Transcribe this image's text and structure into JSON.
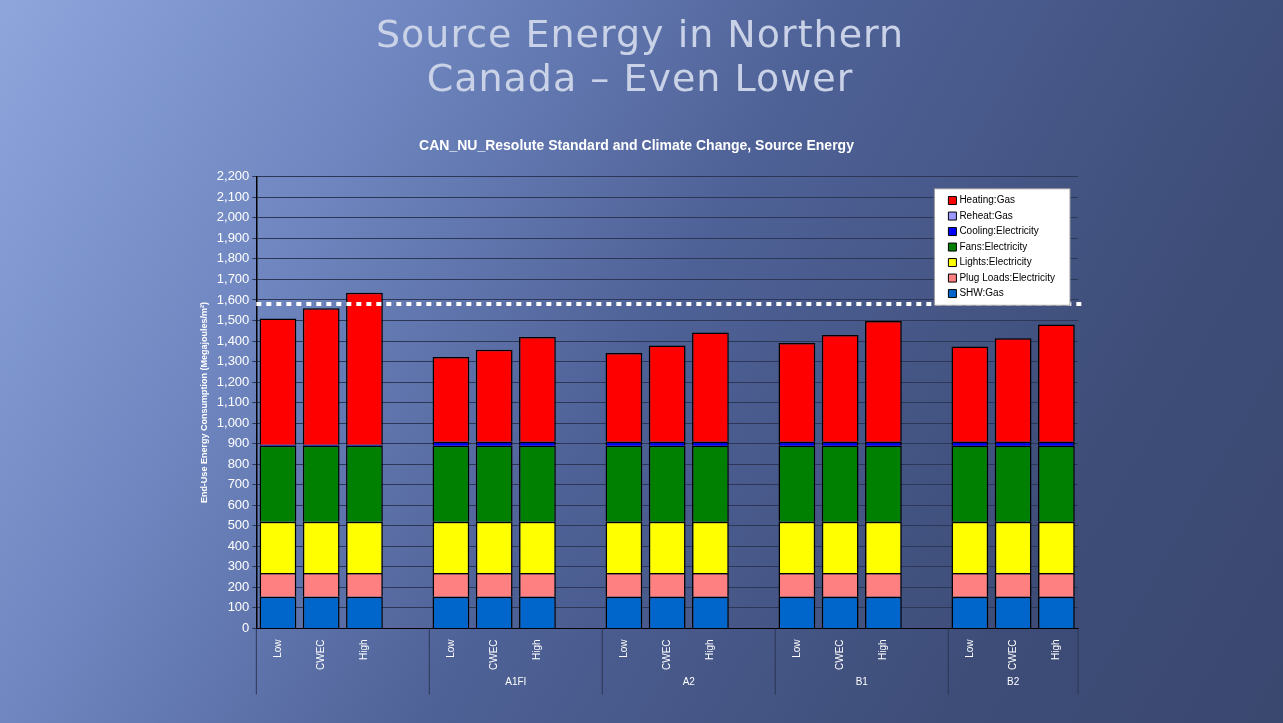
{
  "chart_data": {
    "type": "bar",
    "title": "Source Energy in Northern Canada – Even Lower",
    "subtitle": "CAN_NU_Resolute Standard and Climate Change, Source Energy",
    "ylabel": "End-Use Energy Consumption (Megajoules/m²)",
    "categories": [
      "Low",
      "CWEC",
      "High",
      null,
      "Low",
      "CWEC",
      "High",
      null,
      "Low",
      "CWEC",
      "High",
      null,
      "Low",
      "CWEC",
      "High",
      null,
      "Low",
      "CWEC",
      "High"
    ],
    "annotations": [
      "A1FI",
      "A2",
      "B1",
      "B2"
    ],
    "stacked": true,
    "ylim": [
      0,
      2200
    ],
    "yticks": [
      {
        "value": 0,
        "label": "0"
      },
      {
        "value": 100,
        "label": "100"
      },
      {
        "value": 200,
        "label": "200"
      },
      {
        "value": 300,
        "label": "300"
      },
      {
        "value": 400,
        "label": "400"
      },
      {
        "value": 500,
        "label": "500"
      },
      {
        "value": 600,
        "label": "600"
      },
      {
        "value": 700,
        "label": "700"
      },
      {
        "value": 800,
        "label": "800"
      },
      {
        "value": 900,
        "label": "900"
      },
      {
        "value": 1000,
        "label": "1,000"
      },
      {
        "value": 1100,
        "label": "1,100"
      },
      {
        "value": 1200,
        "label": "1,200"
      },
      {
        "value": 1300,
        "label": "1,300"
      },
      {
        "value": 1400,
        "label": "1,400"
      },
      {
        "value": 1500,
        "label": "1,500"
      },
      {
        "value": 1600,
        "label": "1,600"
      },
      {
        "value": 1700,
        "label": "1,700"
      },
      {
        "value": 1800,
        "label": "1,800"
      },
      {
        "value": 1900,
        "label": "1,900"
      },
      {
        "value": 2000,
        "label": "2,000"
      },
      {
        "value": 2100,
        "label": "2,100"
      },
      {
        "value": 2200,
        "label": "2,200"
      }
    ],
    "grid": "y",
    "legend": "top right",
    "ref_lines": [
      {
        "axis": "y",
        "value": 1580,
        "color": "#ffffff",
        "line_style": "dotted"
      }
    ],
    "series": [
      {
        "name": "SHW:Gas",
        "color": "#0066cc",
        "values": [
          155,
          155,
          155,
          null,
          155,
          155,
          155,
          null,
          155,
          155,
          155,
          null,
          155,
          155,
          155,
          null,
          155,
          155,
          155
        ]
      },
      {
        "name": "Plug Loads:Electricity",
        "color": "#ff8080",
        "values": [
          115,
          115,
          115,
          null,
          115,
          115,
          115,
          null,
          115,
          115,
          115,
          null,
          115,
          115,
          115,
          null,
          115,
          115,
          115
        ]
      },
      {
        "name": "Lights:Electricity",
        "color": "#ffff00",
        "values": [
          250,
          250,
          250,
          null,
          250,
          250,
          250,
          null,
          250,
          250,
          250,
          null,
          250,
          250,
          250,
          null,
          250,
          250,
          250
        ]
      },
      {
        "name": "Fans:Electricity",
        "color": "#008000",
        "values": [
          370,
          370,
          370,
          null,
          370,
          370,
          370,
          null,
          370,
          370,
          370,
          null,
          370,
          370,
          370,
          null,
          370,
          370,
          370
        ]
      },
      {
        "name": "Cooling:Electricity",
        "color": "#0000ff",
        "values": [
          5,
          5,
          5,
          null,
          20,
          20,
          20,
          null,
          20,
          20,
          20,
          null,
          20,
          20,
          20,
          null,
          20,
          20,
          20
        ]
      },
      {
        "name": "Reheat:Gas",
        "color": "#9999ff",
        "values": [
          0,
          0,
          0,
          null,
          0,
          0,
          0,
          null,
          0,
          0,
          0,
          null,
          0,
          0,
          0,
          null,
          0,
          0,
          0
        ]
      },
      {
        "name": "Heating:Gas",
        "color": "#ff0000",
        "values": [
          615,
          665,
          740,
          null,
          412,
          448,
          510,
          null,
          432,
          468,
          532,
          null,
          480,
          520,
          588,
          null,
          463,
          504,
          570
        ]
      }
    ]
  }
}
